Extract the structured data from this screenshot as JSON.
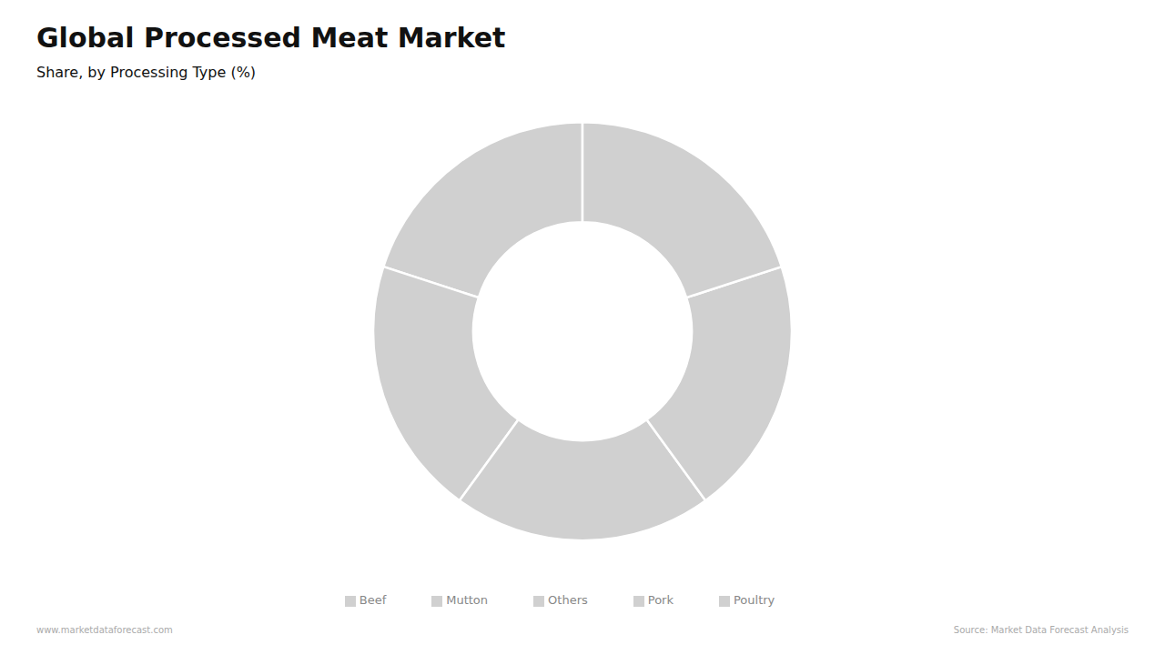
{
  "chart_data": {
    "type": "donut",
    "title": "Global Processed Meat Market",
    "subtitle": "Share, by Processing Type (%)",
    "categories": [
      "Beef",
      "Poultry",
      "Pork",
      "Mutton",
      "Others"
    ],
    "values": [
      20,
      20,
      20,
      20,
      20
    ],
    "color": "#d0d0d0",
    "legend": "bottom",
    "annotations": [
      "www.marketdataforecast.com",
      "Source: Market Data Forecast Analysis"
    ]
  }
}
